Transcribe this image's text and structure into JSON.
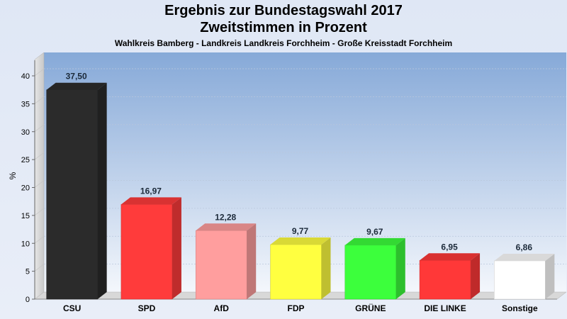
{
  "colors": {
    "CSU": "#2b2b2b",
    "SPD": "#ff3b3b",
    "AfD": "#ff9e9e",
    "FDP": "#ffff40",
    "GRÜNE": "#3cff3c",
    "DIE LINKE": "#ff3838",
    "Sonstige": "#ffffff"
  },
  "chart_data": {
    "type": "bar",
    "title": "Ergebnis zur Bundestagswahl 2017",
    "title_line2": "Zweitstimmen in Prozent",
    "subtitle": "Wahlkreis Bamberg - Landkreis Landkreis Forchheim - Große Kreisstadt Forchheim",
    "ylabel": "%",
    "xlabel": "",
    "ylim": [
      0,
      40
    ],
    "yticks": [
      0,
      5,
      10,
      15,
      20,
      25,
      30,
      35,
      40
    ],
    "categories": [
      "CSU",
      "SPD",
      "AfD",
      "FDP",
      "GRÜNE",
      "DIE LINKE",
      "Sonstige"
    ],
    "values": [
      37.5,
      16.97,
      12.28,
      9.77,
      9.67,
      6.95,
      6.86
    ],
    "value_labels": [
      "37,50",
      "16,97",
      "12,28",
      "9,77",
      "9,67",
      "6,95",
      "6,86"
    ],
    "grid": true,
    "legend": "none"
  }
}
